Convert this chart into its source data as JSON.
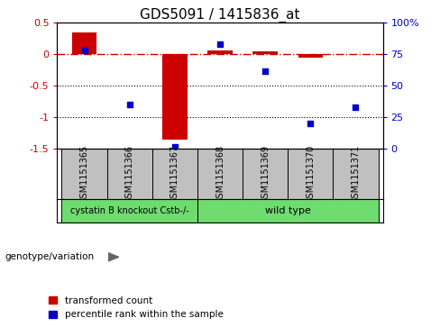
{
  "title": "GDS5091 / 1415836_at",
  "samples": [
    "GSM1151365",
    "GSM1151366",
    "GSM1151367",
    "GSM1151368",
    "GSM1151369",
    "GSM1151370",
    "GSM1151371"
  ],
  "red_values": [
    0.35,
    0.0,
    -1.35,
    0.07,
    0.05,
    -0.05,
    0.0
  ],
  "blue_values_pct": [
    78,
    35,
    2,
    83,
    62,
    20,
    33
  ],
  "ylim_left": [
    -1.5,
    0.5
  ],
  "ylim_right": [
    0,
    100
  ],
  "yticks_left": [
    -1.5,
    -1.0,
    -0.5,
    0.0,
    0.5
  ],
  "yticks_right": [
    0,
    25,
    50,
    75,
    100
  ],
  "ytick_labels_left": [
    "-1.5",
    "-1",
    "-0.5",
    "0",
    "0.5"
  ],
  "ytick_labels_right": [
    "0",
    "25",
    "50",
    "75",
    "100%"
  ],
  "group1_label": "cystatin B knockout Cstb-/-",
  "group2_label": "wild type",
  "group1_indices": [
    0,
    1,
    2
  ],
  "group2_indices": [
    3,
    4,
    5,
    6
  ],
  "group1_color": "#6fdc6f",
  "group2_color": "#6fdc6f",
  "bar_color": "#cc0000",
  "dot_color": "#0000cc",
  "sample_bg_color": "#c0c0c0",
  "legend_red_label": "transformed count",
  "legend_blue_label": "percentile rank within the sample",
  "hline_color": "#cc0000",
  "dotted_line_color": "#000000",
  "bar_width": 0.55,
  "title_fontsize": 11,
  "tick_fontsize": 8,
  "sample_fontsize": 7,
  "group_fontsize": 8
}
